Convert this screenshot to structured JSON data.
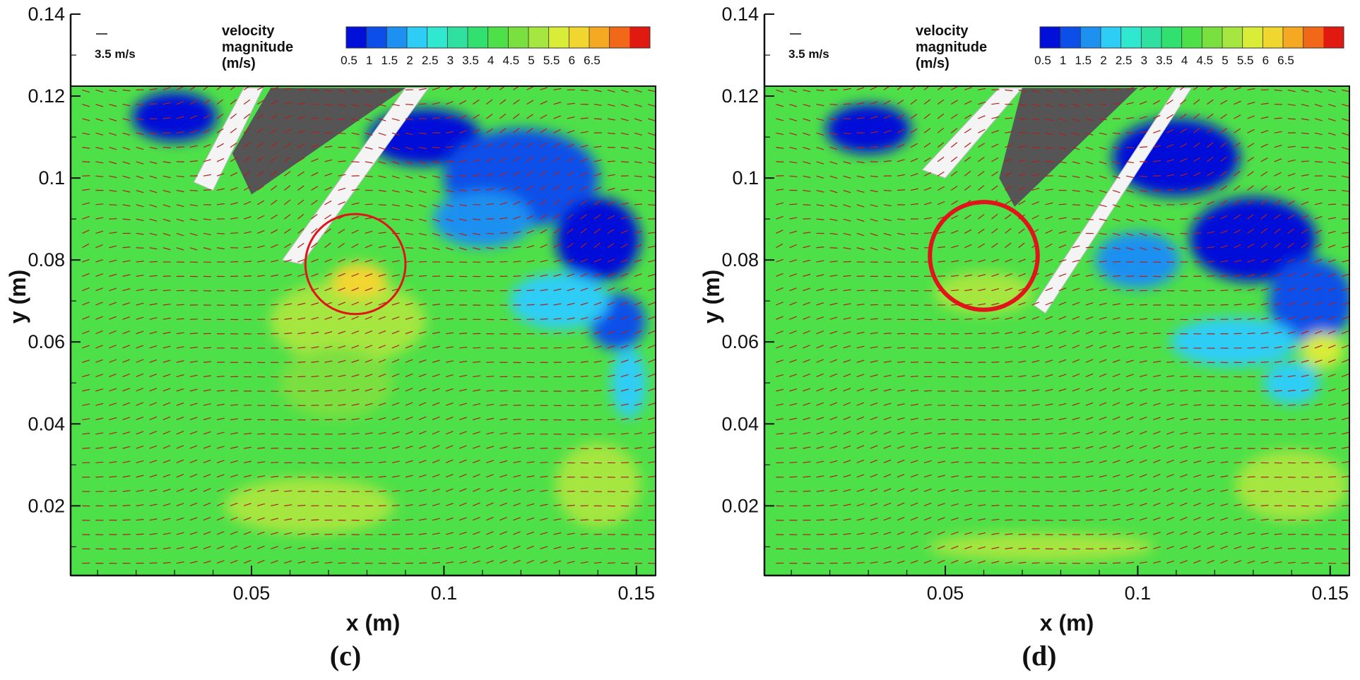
{
  "chart_data": [
    {
      "type": "heatmap",
      "panel_label": "(c)",
      "xlabel": "x (m)",
      "ylabel": "y (m)",
      "x_ticks": [
        0.05,
        0.1,
        0.15
      ],
      "x_tick_labels": [
        "0.05",
        "0.1",
        "0.15"
      ],
      "y_ticks": [
        0.02,
        0.04,
        0.06,
        0.08,
        0.1,
        0.12,
        0.14
      ],
      "y_tick_labels": [
        "0.02",
        "0.04",
        "0.06",
        "0.08",
        "0.1",
        "0.12",
        "0.14"
      ],
      "xlim": [
        0.003,
        0.155
      ],
      "ylim": [
        0.003,
        0.14
      ],
      "legend": {
        "title_lines": [
          "velocity",
          "magnitude",
          "(m/s)"
        ],
        "levels": [
          0.5,
          1,
          1.5,
          2,
          2.5,
          3,
          3.5,
          4,
          4.5,
          5,
          5.5,
          6,
          6.5
        ],
        "level_labels": [
          "0.5",
          "1",
          "1.5",
          "2",
          "2.5",
          "3",
          "3.5",
          "4",
          "4.5",
          "5",
          "5.5",
          "6",
          "6.5"
        ],
        "colors": [
          "#0010d8",
          "#0b4fe8",
          "#1e90f0",
          "#2ecdf5",
          "#30e8d0",
          "#2fe0a0",
          "#32e070",
          "#4ee048",
          "#7ae040",
          "#a6e640",
          "#d8ec38",
          "#f2d630",
          "#f5a822",
          "#f06818",
          "#e01a10"
        ]
      },
      "reference_vector": "3.5 m/s",
      "highlight_circle": {
        "cx": 0.077,
        "cy": 0.079,
        "r": 0.013
      },
      "vector_field_color": "#b0201e"
    },
    {
      "type": "heatmap",
      "panel_label": "(d)",
      "xlabel": "x (m)",
      "ylabel": "y (m)",
      "x_ticks": [
        0.05,
        0.1,
        0.15
      ],
      "x_tick_labels": [
        "0.05",
        "0.1",
        "0.15"
      ],
      "y_ticks": [
        0.02,
        0.04,
        0.06,
        0.08,
        0.1,
        0.12,
        0.14
      ],
      "y_tick_labels": [
        "0.02",
        "0.04",
        "0.06",
        "0.08",
        "0.1",
        "0.12",
        "0.14"
      ],
      "xlim": [
        0.003,
        0.155
      ],
      "ylim": [
        0.003,
        0.14
      ],
      "legend": {
        "title_lines": [
          "velocity",
          "magnitude",
          "(m/s)"
        ],
        "levels": [
          0.5,
          1,
          1.5,
          2,
          2.5,
          3,
          3.5,
          4,
          4.5,
          5,
          5.5,
          6,
          6.5
        ],
        "level_labels": [
          "0.5",
          "1",
          "1.5",
          "2",
          "2.5",
          "3",
          "3.5",
          "4",
          "4.5",
          "5",
          "5.5",
          "6",
          "6.5"
        ],
        "colors": [
          "#0010d8",
          "#0b4fe8",
          "#1e90f0",
          "#2ecdf5",
          "#30e8d0",
          "#2fe0a0",
          "#32e070",
          "#4ee048",
          "#7ae040",
          "#a6e640",
          "#d8ec38",
          "#f2d630",
          "#f5a822",
          "#f06818",
          "#e01a10"
        ]
      },
      "reference_vector": "3.5 m/s",
      "highlight_circle": {
        "cx": 0.06,
        "cy": 0.081,
        "r": 0.014
      },
      "vector_field_color": "#b0201e"
    }
  ]
}
